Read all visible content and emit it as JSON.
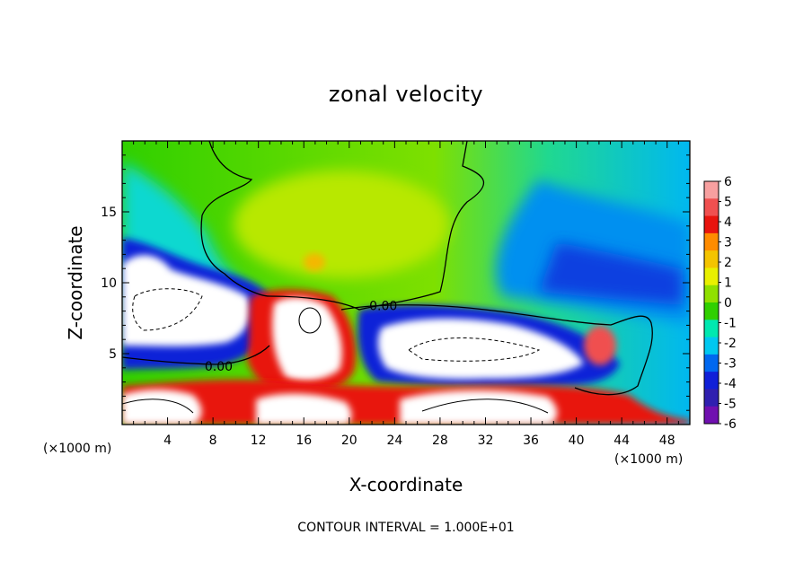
{
  "chart_data": {
    "type": "heatmap",
    "title": "zonal velocity",
    "xlabel": "X-coordinate",
    "ylabel": "Z-coordinate",
    "x_unit_left": "(×1000 m)",
    "x_unit_right": "(×1000 m)",
    "xlim": [
      0,
      50
    ],
    "ylim": [
      0,
      20
    ],
    "x_ticks": [
      4,
      8,
      12,
      16,
      20,
      24,
      28,
      32,
      36,
      40,
      44,
      48
    ],
    "y_ticks": [
      5,
      10,
      15
    ],
    "colorbar": {
      "ticks": [
        6,
        5,
        4,
        3,
        2,
        1,
        0,
        -1,
        -2,
        -3,
        -4,
        -5,
        -6
      ],
      "colors": [
        "#f7a0a0",
        "#f05050",
        "#e8140e",
        "#ff8c00",
        "#f4c400",
        "#e9f000",
        "#90e000",
        "#30d000",
        "#00e8b0",
        "#00c8f0",
        "#0068f0",
        "#1020d8",
        "#3020b0",
        "#7010b0"
      ]
    },
    "contour_labels": [
      {
        "text": "0.00",
        "x": 8.5,
        "z": 4.1
      },
      {
        "text": "0.00",
        "x": 23.0,
        "z": 8.4
      }
    ],
    "footer": "CONTOUR INTERVAL = 1.000E+01"
  }
}
